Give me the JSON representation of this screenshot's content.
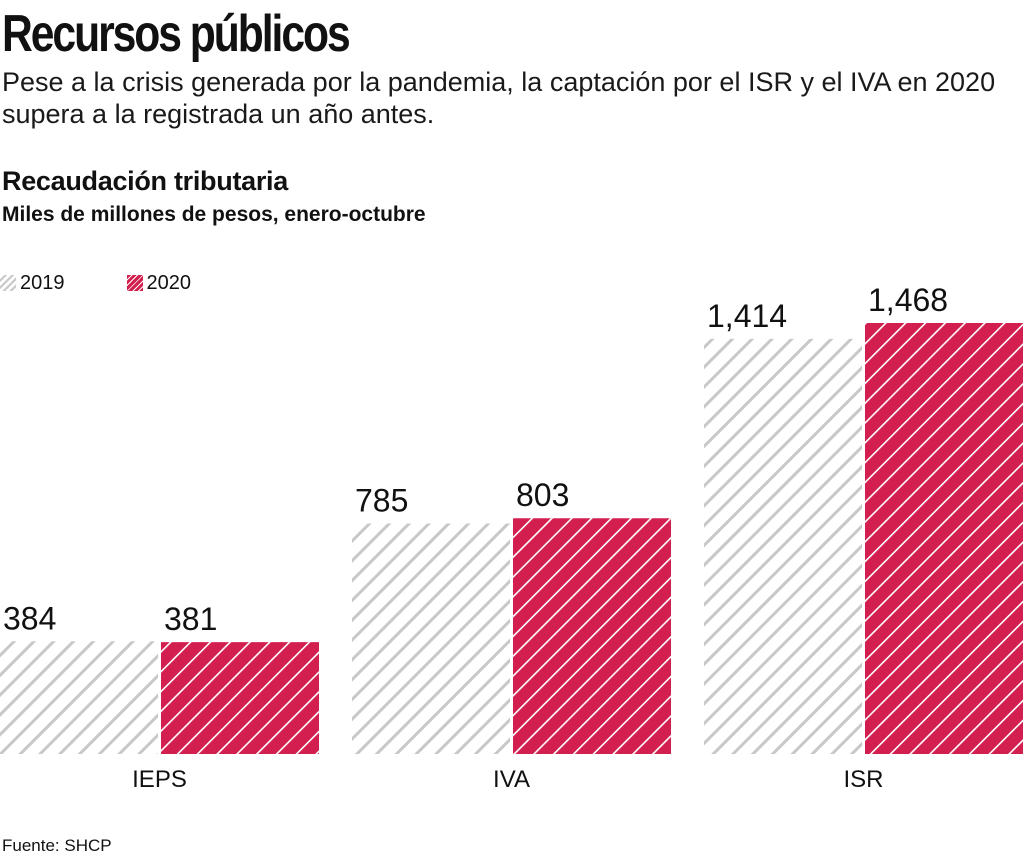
{
  "header": {
    "title": "Recursos públicos",
    "subtitle": "Pese a la crisis generada por la pandemia, la captación por el ISR y el IVA en 2020 supera a la registrada un año antes."
  },
  "chart_header": {
    "title": "Recaudación tributaria",
    "subtitle": "Miles de millones de pesos, enero-octubre"
  },
  "legend": {
    "series_2019": "2019",
    "series_2020": "2020"
  },
  "colors": {
    "series_2019_stripe": "#c8c8c8",
    "series_2020_fill": "#d21f4f",
    "text": "#111111"
  },
  "chart_data": {
    "type": "bar",
    "title": "Recaudación tributaria",
    "subtitle": "Miles de millones de pesos, enero-octubre",
    "categories": [
      "IEPS",
      "IVA",
      "ISR"
    ],
    "series": [
      {
        "name": "2019",
        "values": [
          384,
          785,
          1414
        ],
        "labels": [
          "384",
          "785",
          "1,414"
        ]
      },
      {
        "name": "2020",
        "values": [
          381,
          803,
          1468
        ],
        "labels": [
          "381",
          "803",
          "1,468"
        ]
      }
    ],
    "xlabel": "",
    "ylabel": "",
    "ylim": [
      0,
      1468
    ],
    "grid": false,
    "legend_position": "top-left"
  },
  "footer": {
    "source": "Fuente: SHCP"
  }
}
